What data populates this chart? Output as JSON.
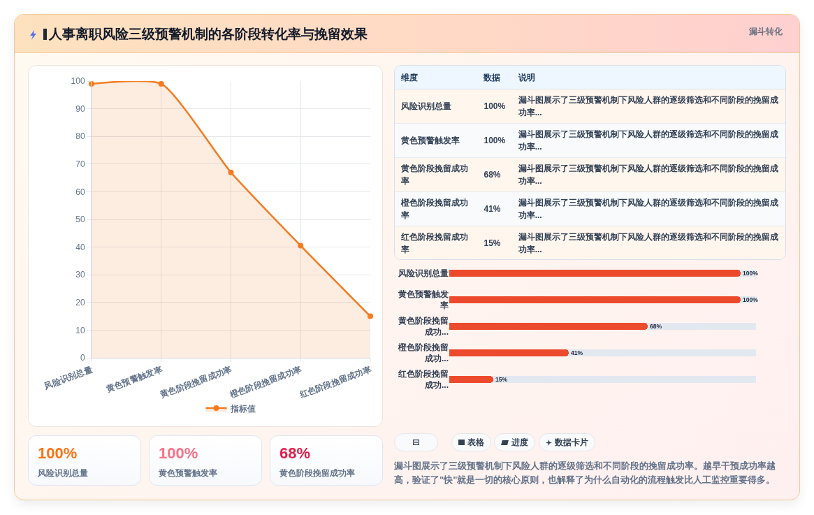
{
  "chart_data": [
    {
      "type": "area",
      "title": "人事离职风险三级预警机制的各阶段转化率与挽留效果",
      "annotations": [
        "漏斗转化"
      ],
      "categories": [
        "风险识别总量",
        "黄色预警触发率",
        "黄色阶段挽留成功率",
        "橙色阶段挽留成功率",
        "红色阶段挽留成功率"
      ],
      "series": [
        {
          "name": "指标值",
          "color": "#f47b20",
          "values": [
            99,
            99,
            67,
            40.5,
            15
          ]
        }
      ],
      "ylim": [
        0,
        100
      ],
      "yticks": [
        0,
        10,
        20,
        30,
        40,
        50,
        60,
        70,
        80,
        90,
        100
      ],
      "grid": true,
      "legend": "bottom",
      "marker": "circle"
    },
    {
      "type": "other",
      "categories": [
        "风险识别总量",
        "黄色预警触发率",
        "黄色阶段挽留成功率",
        "橙色阶段挽留成功率",
        "红色阶段挽留成功率"
      ],
      "value_labels": [
        "100%",
        "100%",
        "68%",
        "41%",
        "15%"
      ],
      "annotations": [
        "维度",
        "数据",
        "说明",
        "漏斗图展示了三级预警机制下风险人群的逐级筛选和不同阶段的挽留成功率...",
        "漏斗图展示了三级预警机制下风险人群的逐级筛选和不同阶段的挽留成功率...",
        "漏斗图展示了三级预警机制下风险人群的逐级筛选和不同阶段的挽留成功率...",
        "漏斗图展示了三级预警机制下风险人群的逐级筛选和不同阶段的挽留成功率...",
        "漏斗图展示了三级预警机制下风险人群的逐级筛选和不同阶段的挽留成功率..."
      ]
    },
    {
      "type": "bar",
      "orientation": "horizontal",
      "categories": [
        "风险识别总量",
        "黄色预警触发率",
        "黄色阶段挽留成功...",
        "橙色阶段挽留成功...",
        "红色阶段挽留成功..."
      ],
      "values": [
        100,
        100,
        68,
        41,
        15
      ],
      "value_labels": [
        "100%",
        "100%",
        "68%",
        "41%",
        "15%"
      ],
      "color": "#ec4a2c"
    },
    {
      "type": "other",
      "annotations": [
        "100%",
        "风险识别总量",
        "100%",
        "黄色预警触发率",
        "68%",
        "黄色阶段挽留成功率"
      ],
      "colors": [
        "#f97316",
        "#f87185",
        "#e11d48"
      ]
    },
    {
      "type": "other",
      "annotations": [
        "表格",
        "进度",
        "数据卡片",
        "漏斗图展示了三级预警机制下风险人群的逐级筛选和不同阶段的挽留成功率。越早干预成功率越高，验证了\"快\"就是一切的核心原则，也解释了为什么自动化的流程触发比人工监控重要得多。"
      ]
    }
  ]
}
